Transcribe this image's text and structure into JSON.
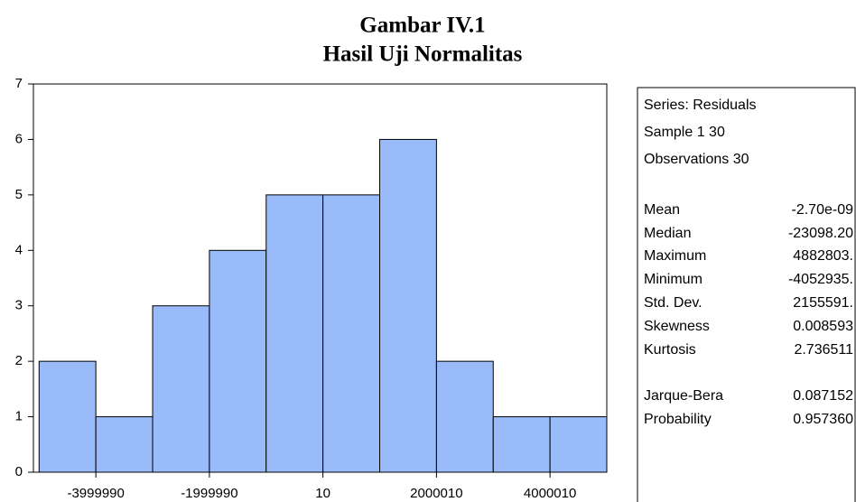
{
  "chart_data": {
    "type": "histogram",
    "title": "Gambar IV.1",
    "subtitle": "Hasil Uji Normalitas",
    "bins": [
      -4999990,
      -3999990,
      -2999990,
      -1999990,
      -999990,
      10,
      1000010,
      2000010,
      3000010,
      4000010,
      5000010
    ],
    "values": [
      2,
      1,
      3,
      4,
      5,
      5,
      6,
      2,
      1,
      1
    ],
    "color": "#99bbf9",
    "xlim": [
      -5100000,
      5000010
    ],
    "xticks": [
      -3999990,
      -1999990,
      10,
      2000010,
      4000010
    ],
    "ylim": [
      0,
      7
    ],
    "yticks": [
      0,
      1,
      2,
      3,
      4,
      5,
      6,
      7
    ],
    "stats_header": [
      "Series: Residuals",
      "Sample 1 30",
      "Observations 30"
    ],
    "stats": [
      {
        "label": "Mean",
        "value": "-2.70e-09"
      },
      {
        "label": "Median",
        "value": "-23098.20"
      },
      {
        "label": "Maximum",
        "value": "4882803."
      },
      {
        "label": "Minimum",
        "value": "-4052935."
      },
      {
        "label": "Std. Dev.",
        "value": "2155591."
      },
      {
        "label": "Skewness",
        "value": "0.008593"
      },
      {
        "label": "Kurtosis",
        "value": "2.736511"
      },
      {
        "label": "Jarque-Bera",
        "value": "0.087152"
      },
      {
        "label": "Probability",
        "value": "0.957360"
      }
    ]
  }
}
